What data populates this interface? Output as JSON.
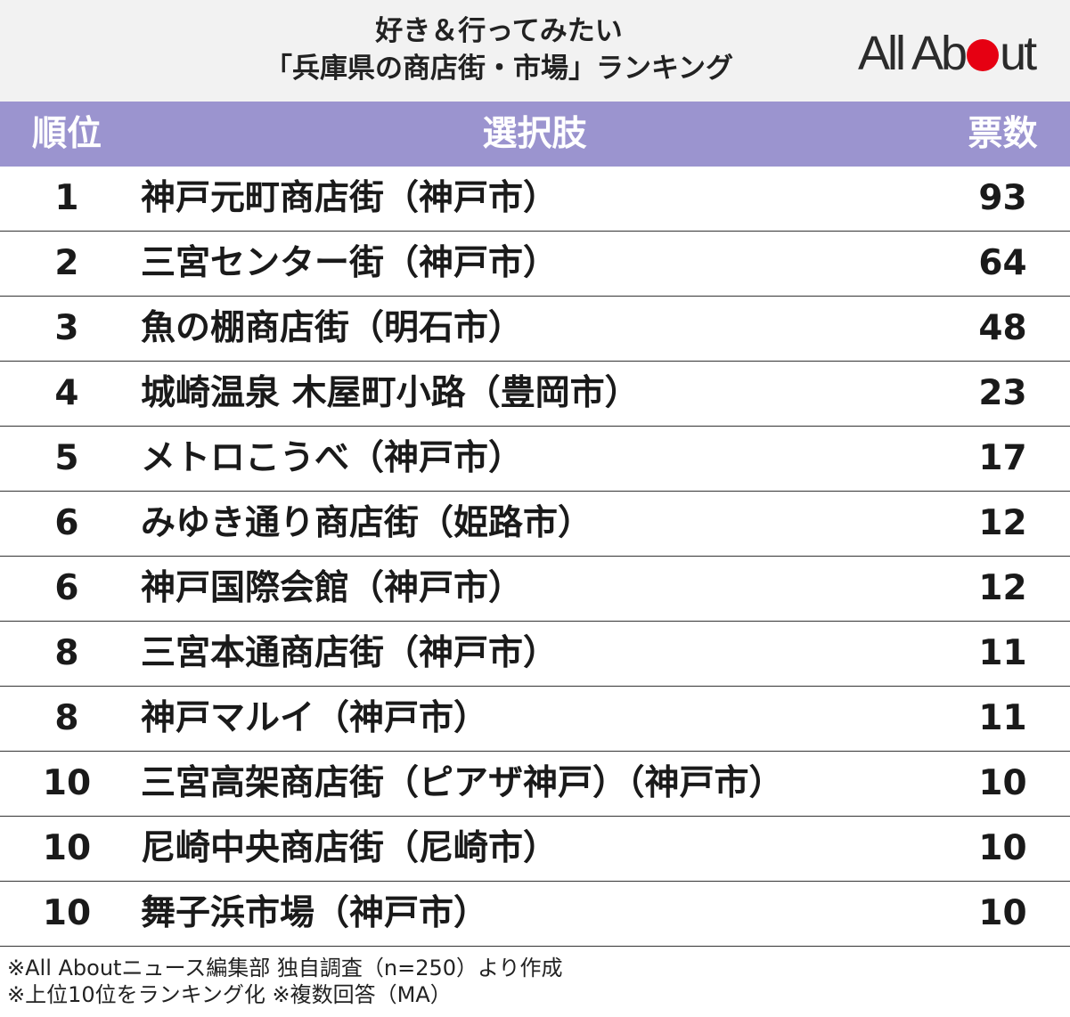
{
  "title": {
    "line1": "好き＆行ってみたい",
    "line2": "「兵庫県の商店街・市場」ランキング"
  },
  "logo": {
    "text_left": "All Ab",
    "text_right": "ut"
  },
  "colors": {
    "header_band": "#9b94cf",
    "logo_dot": "#e60012"
  },
  "table": {
    "headers": {
      "rank": "順位",
      "choice": "選択肢",
      "votes": "票数"
    },
    "rows": [
      {
        "rank": "1",
        "choice": "神戸元町商店街（神戸市）",
        "votes": "93"
      },
      {
        "rank": "2",
        "choice": "三宮センター街（神戸市）",
        "votes": "64"
      },
      {
        "rank": "3",
        "choice": "魚の棚商店街（明石市）",
        "votes": "48"
      },
      {
        "rank": "4",
        "choice": "城崎温泉 木屋町小路（豊岡市）",
        "votes": "23"
      },
      {
        "rank": "5",
        "choice": "メトロこうべ（神戸市）",
        "votes": "17"
      },
      {
        "rank": "6",
        "choice": "みゆき通り商店街（姫路市）",
        "votes": "12"
      },
      {
        "rank": "6",
        "choice": "神戸国際会館（神戸市）",
        "votes": "12"
      },
      {
        "rank": "8",
        "choice": "三宮本通商店街（神戸市）",
        "votes": "11"
      },
      {
        "rank": "8",
        "choice": "神戸マルイ（神戸市）",
        "votes": "11"
      },
      {
        "rank": "10",
        "choice": "三宮高架商店街（ピアザ神戸）（神戸市）",
        "votes": "10"
      },
      {
        "rank": "10",
        "choice": "尼崎中央商店街（尼崎市）",
        "votes": "10"
      },
      {
        "rank": "10",
        "choice": "舞子浜市場（神戸市）",
        "votes": "10"
      }
    ]
  },
  "notes": [
    "※All Aboutニュース編集部 独自調査（n=250）より作成",
    "※上位10位をランキング化 ※複数回答（MA）"
  ]
}
